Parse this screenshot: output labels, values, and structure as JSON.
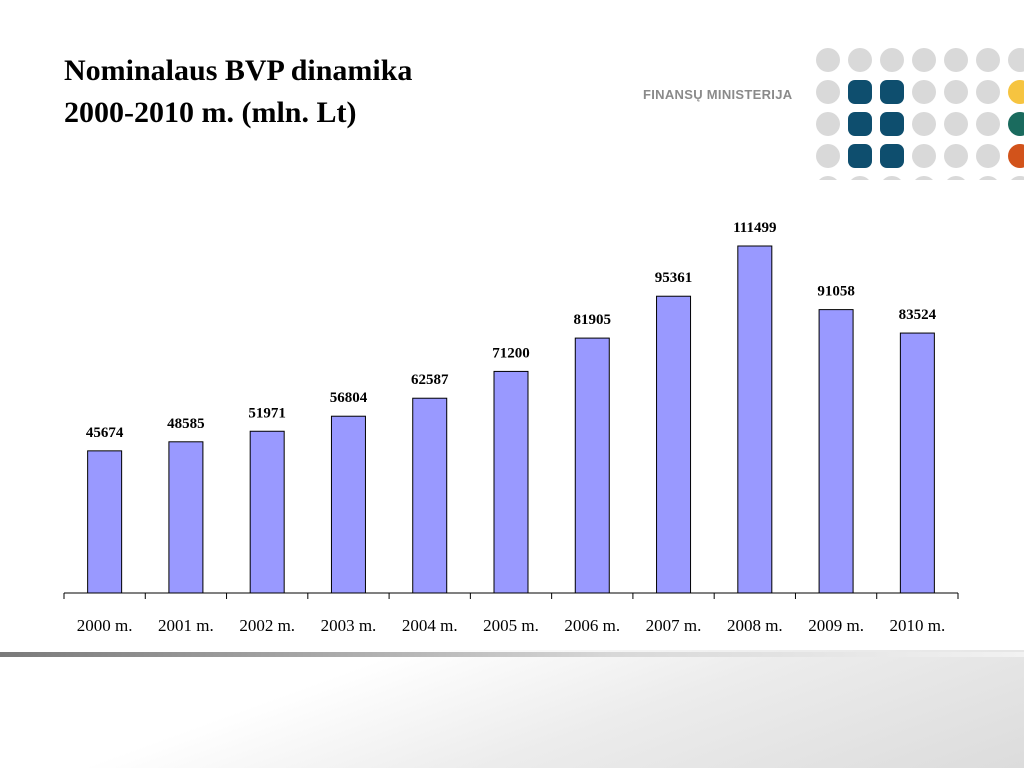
{
  "slide": {
    "title_line1": "Nominalaus BVP dinamika",
    "title_line2": "2000-2010 m. (mln. Lt)",
    "logo_text": "FINANSŲ MINISTERIJA",
    "logo_colors": {
      "grey": "#d9d9d9",
      "blue": "#0e4e6e",
      "yellow": "#f6c440",
      "teal": "#1a6b5e",
      "orange": "#d2531b"
    }
  },
  "chart_data": {
    "type": "bar",
    "categories": [
      "2000 m.",
      "2001 m.",
      "2002 m.",
      "2003 m.",
      "2004 m.",
      "2005 m.",
      "2006 m.",
      "2007 m.",
      "2008 m.",
      "2009 m.",
      "2010 m."
    ],
    "values": [
      45674,
      48585,
      51971,
      56804,
      62587,
      71200,
      81905,
      95361,
      111499,
      91058,
      83524
    ],
    "data_labels": [
      "45674",
      "48585",
      "51971",
      "56804",
      "62587",
      "71200",
      "81905",
      "95361",
      "111499",
      "91058",
      "83524"
    ],
    "title": "Nominalaus BVP dinamika 2000-2010 m. (mln. Lt)",
    "xlabel": "",
    "ylabel": "",
    "bar_color": "#9999ff",
    "grid": false,
    "legend": "none"
  }
}
